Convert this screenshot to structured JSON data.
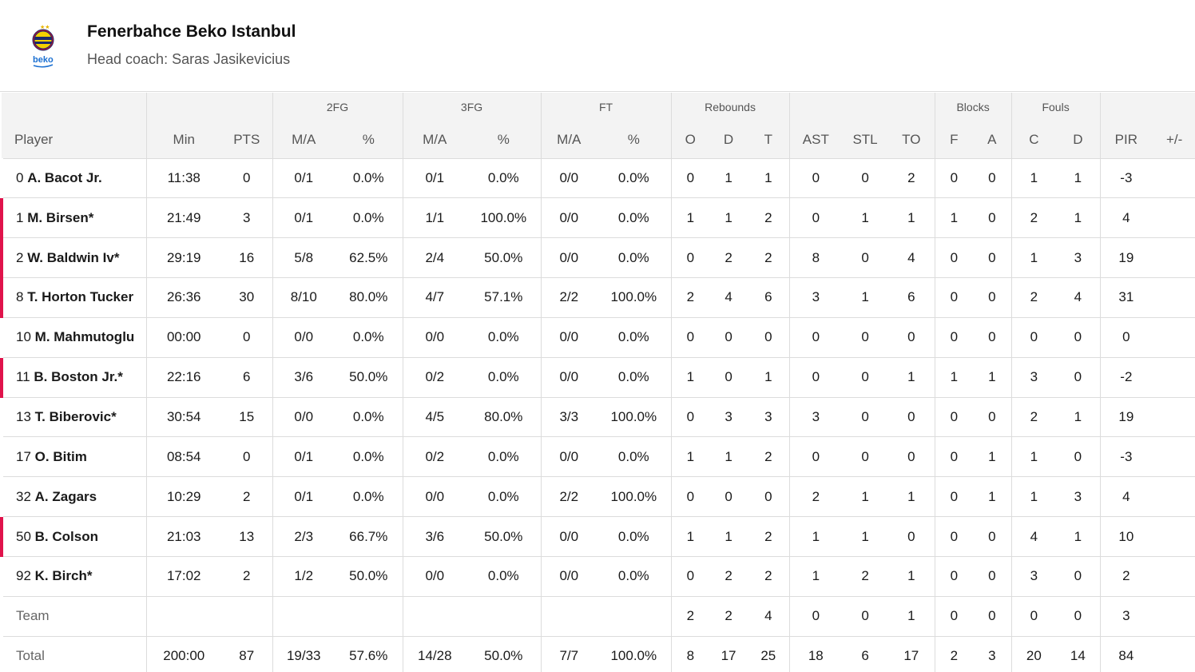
{
  "team": {
    "name": "Fenerbahce Beko Istanbul",
    "coach": "Head coach: Saras Jasikevicius",
    "logo_text": "beko",
    "accent_color": "#e0134b"
  },
  "groups": {
    "fg2": "2FG",
    "fg3": "3FG",
    "ft": "FT",
    "rebounds": "Rebounds",
    "blocks": "Blocks",
    "fouls": "Fouls"
  },
  "columns": [
    "Player",
    "Min",
    "PTS",
    "M/A",
    "%",
    "M/A",
    "%",
    "M/A",
    "%",
    "O",
    "D",
    "T",
    "AST",
    "STL",
    "TO",
    "F",
    "A",
    "C",
    "D",
    "PIR",
    "+/-"
  ],
  "players": [
    {
      "num": "0",
      "name": "A. Bacot Jr.",
      "starter": false,
      "stats": [
        "11:38",
        "0",
        "0/1",
        "0.0%",
        "0/1",
        "0.0%",
        "0/0",
        "0.0%",
        "0",
        "1",
        "1",
        "0",
        "0",
        "2",
        "0",
        "0",
        "1",
        "1",
        "-3",
        ""
      ]
    },
    {
      "num": "1",
      "name": "M. Birsen*",
      "starter": true,
      "stats": [
        "21:49",
        "3",
        "0/1",
        "0.0%",
        "1/1",
        "100.0%",
        "0/0",
        "0.0%",
        "1",
        "1",
        "2",
        "0",
        "1",
        "1",
        "1",
        "0",
        "2",
        "1",
        "4",
        ""
      ]
    },
    {
      "num": "2",
      "name": "W. Baldwin Iv*",
      "starter": true,
      "stats": [
        "29:19",
        "16",
        "5/8",
        "62.5%",
        "2/4",
        "50.0%",
        "0/0",
        "0.0%",
        "0",
        "2",
        "2",
        "8",
        "0",
        "4",
        "0",
        "0",
        "1",
        "3",
        "19",
        ""
      ]
    },
    {
      "num": "8",
      "name": "T. Horton Tucker",
      "starter": true,
      "stats": [
        "26:36",
        "30",
        "8/10",
        "80.0%",
        "4/7",
        "57.1%",
        "2/2",
        "100.0%",
        "2",
        "4",
        "6",
        "3",
        "1",
        "6",
        "0",
        "0",
        "2",
        "4",
        "31",
        ""
      ]
    },
    {
      "num": "10",
      "name": "M. Mahmutoglu",
      "starter": false,
      "stats": [
        "00:00",
        "0",
        "0/0",
        "0.0%",
        "0/0",
        "0.0%",
        "0/0",
        "0.0%",
        "0",
        "0",
        "0",
        "0",
        "0",
        "0",
        "0",
        "0",
        "0",
        "0",
        "0",
        ""
      ]
    },
    {
      "num": "11",
      "name": "B. Boston Jr.*",
      "starter": true,
      "stats": [
        "22:16",
        "6",
        "3/6",
        "50.0%",
        "0/2",
        "0.0%",
        "0/0",
        "0.0%",
        "1",
        "0",
        "1",
        "0",
        "0",
        "1",
        "1",
        "1",
        "3",
        "0",
        "-2",
        ""
      ]
    },
    {
      "num": "13",
      "name": "T. Biberovic*",
      "starter": false,
      "stats": [
        "30:54",
        "15",
        "0/0",
        "0.0%",
        "4/5",
        "80.0%",
        "3/3",
        "100.0%",
        "0",
        "3",
        "3",
        "3",
        "0",
        "0",
        "0",
        "0",
        "2",
        "1",
        "19",
        ""
      ]
    },
    {
      "num": "17",
      "name": "O. Bitim",
      "starter": false,
      "stats": [
        "08:54",
        "0",
        "0/1",
        "0.0%",
        "0/2",
        "0.0%",
        "0/0",
        "0.0%",
        "1",
        "1",
        "2",
        "0",
        "0",
        "0",
        "0",
        "1",
        "1",
        "0",
        "-3",
        ""
      ]
    },
    {
      "num": "32",
      "name": "A. Zagars",
      "starter": false,
      "stats": [
        "10:29",
        "2",
        "0/1",
        "0.0%",
        "0/0",
        "0.0%",
        "2/2",
        "100.0%",
        "0",
        "0",
        "0",
        "2",
        "1",
        "1",
        "0",
        "1",
        "1",
        "3",
        "4",
        ""
      ]
    },
    {
      "num": "50",
      "name": "B. Colson",
      "starter": true,
      "stats": [
        "21:03",
        "13",
        "2/3",
        "66.7%",
        "3/6",
        "50.0%",
        "0/0",
        "0.0%",
        "1",
        "1",
        "2",
        "1",
        "1",
        "0",
        "0",
        "0",
        "4",
        "1",
        "10",
        ""
      ]
    },
    {
      "num": "92",
      "name": "K. Birch*",
      "starter": false,
      "stats": [
        "17:02",
        "2",
        "1/2",
        "50.0%",
        "0/0",
        "0.0%",
        "0/0",
        "0.0%",
        "0",
        "2",
        "2",
        "1",
        "2",
        "1",
        "0",
        "0",
        "3",
        "0",
        "2",
        ""
      ]
    }
  ],
  "team_row": {
    "label": "Team",
    "stats": [
      "",
      "",
      "",
      "",
      "",
      "",
      "",
      "",
      "2",
      "2",
      "4",
      "0",
      "0",
      "1",
      "0",
      "0",
      "0",
      "0",
      "3",
      ""
    ]
  },
  "total_row": {
    "label": "Total",
    "stats": [
      "200:00",
      "87",
      "19/33",
      "57.6%",
      "14/28",
      "50.0%",
      "7/7",
      "100.0%",
      "8",
      "17",
      "25",
      "18",
      "6",
      "17",
      "2",
      "3",
      "20",
      "14",
      "84",
      ""
    ]
  }
}
